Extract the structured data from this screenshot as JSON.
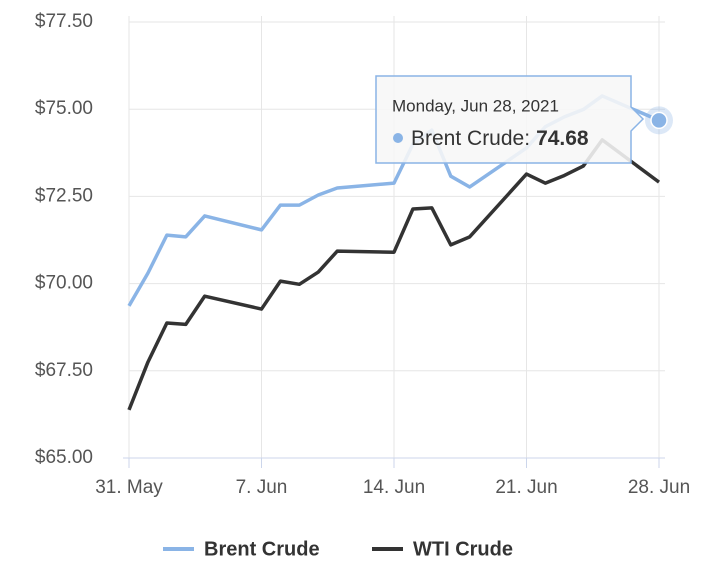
{
  "chart_data": {
    "type": "line",
    "x": [
      "2021-05-31",
      "2021-06-01",
      "2021-06-02",
      "2021-06-03",
      "2021-06-04",
      "2021-06-07",
      "2021-06-08",
      "2021-06-09",
      "2021-06-10",
      "2021-06-11",
      "2021-06-14",
      "2021-06-15",
      "2021-06-16",
      "2021-06-17",
      "2021-06-18",
      "2021-06-21",
      "2021-06-22",
      "2021-06-23",
      "2021-06-24",
      "2021-06-25",
      "2021-06-28"
    ],
    "series": [
      {
        "name": "Brent Crude",
        "color": "#8ab4e6",
        "values": [
          69.36,
          70.3,
          71.39,
          71.34,
          71.94,
          71.54,
          72.25,
          72.25,
          72.54,
          72.74,
          72.88,
          74.0,
          74.4,
          73.08,
          72.77,
          73.89,
          74.5,
          74.78,
          74.99,
          75.38,
          74.68
        ]
      },
      {
        "name": "WTI Crude",
        "color": "#333333",
        "values": [
          66.38,
          67.75,
          68.87,
          68.83,
          69.64,
          69.27,
          70.07,
          69.98,
          70.33,
          70.93,
          70.9,
          72.14,
          72.17,
          71.11,
          71.34,
          73.14,
          72.88,
          73.1,
          73.37,
          74.12,
          72.91
        ]
      }
    ],
    "xlim": [
      "2021-05-31",
      "2021-06-28"
    ],
    "xticks": [
      {
        "value": "2021-05-31",
        "label": "31. May"
      },
      {
        "value": "2021-06-07",
        "label": "7. Jun"
      },
      {
        "value": "2021-06-14",
        "label": "14. Jun"
      },
      {
        "value": "2021-06-21",
        "label": "21. Jun"
      },
      {
        "value": "2021-06-28",
        "label": "28. Jun"
      }
    ],
    "ylim": [
      65,
      77.5
    ],
    "yticks": [
      {
        "value": 65,
        "label": "$65.00"
      },
      {
        "value": 67.5,
        "label": "$67.50"
      },
      {
        "value": 70,
        "label": "$70.00"
      },
      {
        "value": 72.5,
        "label": "$72.50"
      },
      {
        "value": 75,
        "label": "$75.00"
      },
      {
        "value": 77.5,
        "label": "$77.50"
      }
    ],
    "grid": true,
    "legend": "bottom",
    "tooltip": {
      "title": "Monday, Jun 28, 2021",
      "label": "Brent Crude:"
    }
  }
}
